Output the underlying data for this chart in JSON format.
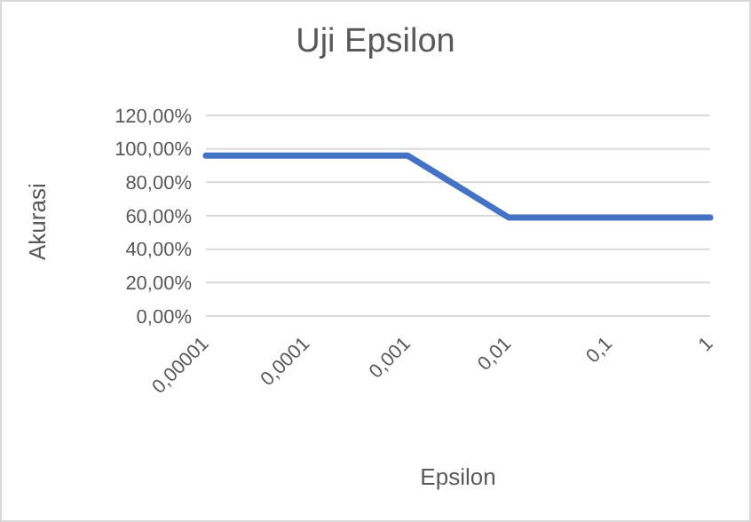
{
  "chart_data": {
    "type": "line",
    "title": "Uji Epsilon",
    "xlabel": "Epsilon",
    "ylabel": "Akurasi",
    "categories": [
      "0,00001",
      "0,0001",
      "0,001",
      "0,01",
      "0,1",
      "1"
    ],
    "series": [
      {
        "color": "#4472c4",
        "values": [
          96,
          96,
          96,
          59,
          59,
          59
        ]
      }
    ],
    "ylim": [
      0,
      120
    ],
    "yticks": [
      {
        "value": 0,
        "label": "0,00%"
      },
      {
        "value": 20,
        "label": "20,00%"
      },
      {
        "value": 40,
        "label": "40,00%"
      },
      {
        "value": 60,
        "label": "60,00%"
      },
      {
        "value": 80,
        "label": "80,00%"
      },
      {
        "value": 100,
        "label": "100,00%"
      },
      {
        "value": 120,
        "label": "120,00%"
      }
    ],
    "grid": "y",
    "legend": false,
    "marker": "none",
    "line_style": "solid"
  }
}
